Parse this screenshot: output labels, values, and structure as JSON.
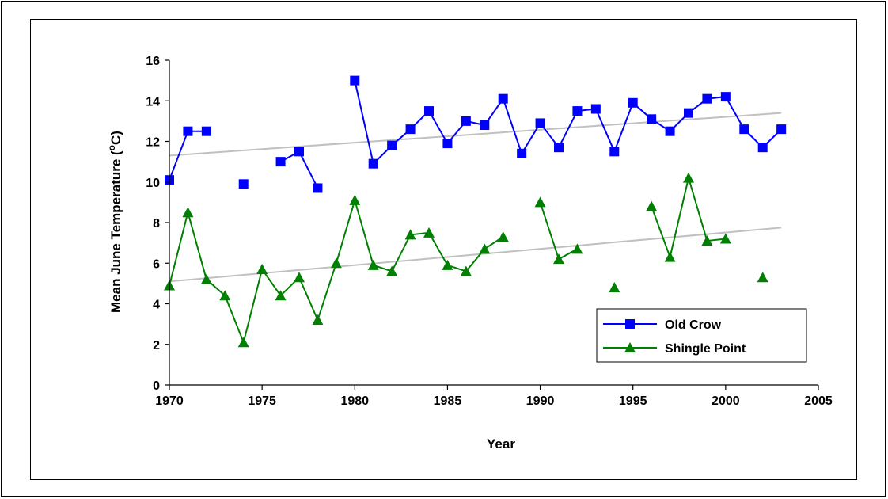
{
  "chart_data": {
    "type": "line",
    "xlabel": "Year",
    "ylabel_main": "Mean June Temperature (",
    "ylabel_sup": "o",
    "ylabel_end": "C)",
    "xlim": [
      1970,
      2005
    ],
    "ylim": [
      0,
      16
    ],
    "xticks": [
      1970,
      1975,
      1980,
      1985,
      1990,
      1995,
      2000,
      2005
    ],
    "yticks": [
      0,
      2,
      4,
      6,
      8,
      10,
      12,
      14,
      16
    ],
    "grid": false,
    "legend_position": "bottom-right",
    "series": [
      {
        "name": "Old Crow",
        "color": "#0000ff",
        "marker": "square",
        "x": [
          1970,
          1971,
          1972,
          1974,
          1976,
          1977,
          1978,
          1980,
          1981,
          1982,
          1983,
          1984,
          1985,
          1986,
          1987,
          1988,
          1989,
          1990,
          1991,
          1992,
          1993,
          1994,
          1995,
          1996,
          1997,
          1998,
          1999,
          2000,
          2001,
          2002,
          2003
        ],
        "y": [
          10.1,
          12.5,
          12.5,
          9.9,
          11.0,
          11.5,
          9.7,
          15.0,
          10.9,
          11.8,
          12.6,
          13.5,
          11.9,
          13.0,
          12.8,
          14.1,
          11.4,
          12.9,
          11.7,
          13.5,
          13.6,
          11.5,
          13.9,
          13.1,
          12.5,
          13.4,
          14.1,
          14.2,
          12.6,
          11.7,
          12.6
        ],
        "segments": [
          [
            1970,
            1971,
            1972
          ],
          [
            1976,
            1977,
            1978
          ],
          [
            1980,
            1981,
            1982,
            1983,
            1984,
            1985,
            1986,
            1987,
            1988,
            1989,
            1990,
            1991,
            1992,
            1993,
            1994,
            1995,
            1996,
            1997,
            1998,
            1999,
            2000,
            2001,
            2002,
            2003
          ]
        ],
        "trend": [
          [
            1970,
            11.3
          ],
          [
            2003,
            13.4
          ]
        ]
      },
      {
        "name": "Shingle Point",
        "color": "#008000",
        "marker": "triangle",
        "x": [
          1970,
          1971,
          1972,
          1973,
          1974,
          1975,
          1976,
          1977,
          1978,
          1979,
          1980,
          1981,
          1982,
          1983,
          1984,
          1985,
          1986,
          1987,
          1988,
          1990,
          1991,
          1992,
          1994,
          1996,
          1997,
          1998,
          1999,
          2000,
          2002
        ],
        "y": [
          4.9,
          8.5,
          5.2,
          4.4,
          2.1,
          5.7,
          4.4,
          5.3,
          3.2,
          6.0,
          9.1,
          5.9,
          5.6,
          7.4,
          7.5,
          5.9,
          5.6,
          6.7,
          7.3,
          9.0,
          6.2,
          6.7,
          4.8,
          8.8,
          6.3,
          10.2,
          7.1,
          7.2,
          5.3
        ],
        "segments": [
          [
            1970,
            1971,
            1972,
            1973,
            1974,
            1975,
            1976,
            1977,
            1978,
            1979,
            1980,
            1981,
            1982,
            1983,
            1984,
            1985,
            1986,
            1987,
            1988
          ],
          [
            1990,
            1991,
            1992
          ],
          [
            1996,
            1997,
            1998,
            1999,
            2000
          ]
        ],
        "trend": [
          [
            1970,
            5.1
          ],
          [
            2003,
            7.75
          ]
        ]
      }
    ],
    "trend_color": "#c0c0c0"
  }
}
